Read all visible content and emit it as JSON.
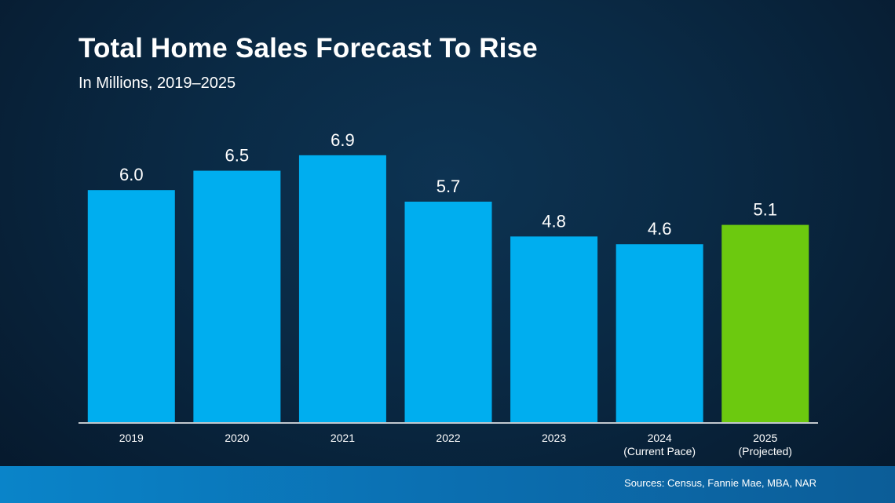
{
  "title": "Total Home Sales Forecast To Rise",
  "subtitle": "In Millions, 2019–2025",
  "sources": "Sources: Census, Fannie Mae, MBA, NAR",
  "colors": {
    "actual": "#00aeef",
    "projected": "#6cc90f",
    "axis": "#ffffff"
  },
  "chart_data": {
    "type": "bar",
    "categories": [
      [
        "2019"
      ],
      [
        "2020"
      ],
      [
        "2021"
      ],
      [
        "2022"
      ],
      [
        "2023"
      ],
      [
        "2024",
        "(Current Pace)"
      ],
      [
        "2025",
        "(Projected)"
      ]
    ],
    "values": [
      6.0,
      6.5,
      6.9,
      5.7,
      4.8,
      4.6,
      5.1
    ],
    "value_labels": [
      "6.0",
      "6.5",
      "6.9",
      "5.7",
      "4.8",
      "4.6",
      "5.1"
    ],
    "highlight_index": 6,
    "ylim": [
      0,
      8
    ],
    "grid": false,
    "legend": "none",
    "xlabel": "",
    "ylabel": ""
  }
}
